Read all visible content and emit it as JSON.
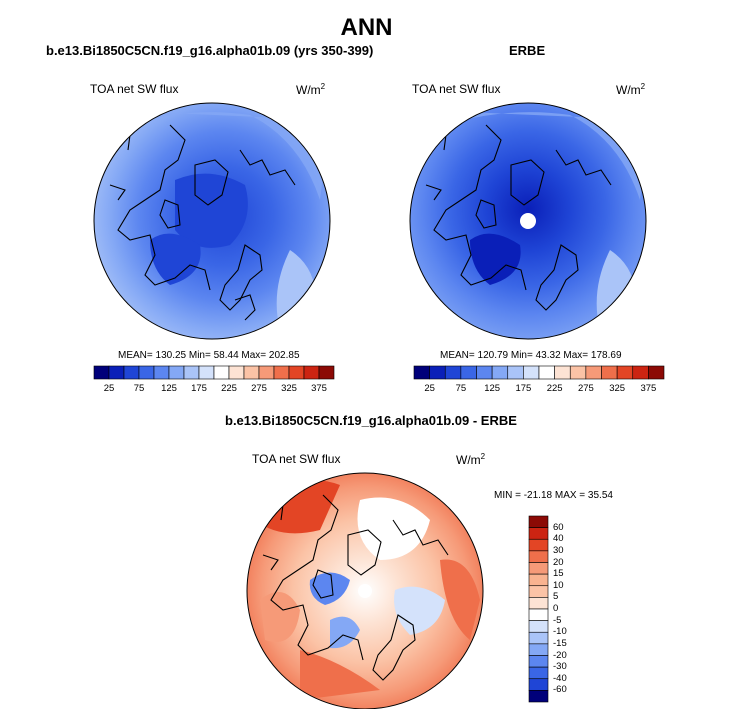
{
  "figure": {
    "title": "ANN",
    "left_panel": {
      "title": "b.e13.Bi1850C5CN.f19_g16.alpha01b.09 (yrs 350-399)",
      "variable": "TOA net SW flux",
      "units": "W/m",
      "units_sup": "2",
      "stats": "MEAN= 130.25  Min=  58.44  Max= 202.85"
    },
    "right_panel": {
      "title": "ERBE",
      "variable": "TOA net SW flux",
      "units": "W/m",
      "units_sup": "2",
      "stats": "MEAN= 120.79  Min=  43.32  Max= 178.69"
    },
    "diff_panel": {
      "title": "b.e13.Bi1850C5CN.f19_g16.alpha01b.09 - ERBE",
      "variable": "TOA net SW flux",
      "units": "W/m",
      "units_sup": "2",
      "stats": "MIN = -21.18 MAX =  35.54"
    }
  },
  "colorbar_abs": {
    "ticks": [
      "25",
      "75",
      "125",
      "175",
      "225",
      "275",
      "325",
      "375"
    ],
    "colors": [
      "#00007a",
      "#0a1fb8",
      "#1f45d6",
      "#3a66e6",
      "#5c86f0",
      "#84a8f5",
      "#aac4f8",
      "#d4e2fb",
      "#ffffff",
      "#fde3d4",
      "#fbc3a6",
      "#f69a78",
      "#ef6f4b",
      "#e34525",
      "#cc2412",
      "#8c0a05"
    ]
  },
  "colorbar_diff": {
    "ticks": [
      "60",
      "40",
      "30",
      "20",
      "15",
      "10",
      "5",
      "0",
      "-5",
      "-10",
      "-15",
      "-20",
      "-30",
      "-40",
      "-60"
    ],
    "colors": [
      "#8c0a05",
      "#cc2412",
      "#e34525",
      "#ef6f4b",
      "#f69a78",
      "#f9b390",
      "#fbc3a6",
      "#fde3d4",
      "#ffffff",
      "#d4e2fb",
      "#aac4f8",
      "#84a8f5",
      "#5c86f0",
      "#3a66e6",
      "#1f45d6",
      "#00007a"
    ]
  }
}
